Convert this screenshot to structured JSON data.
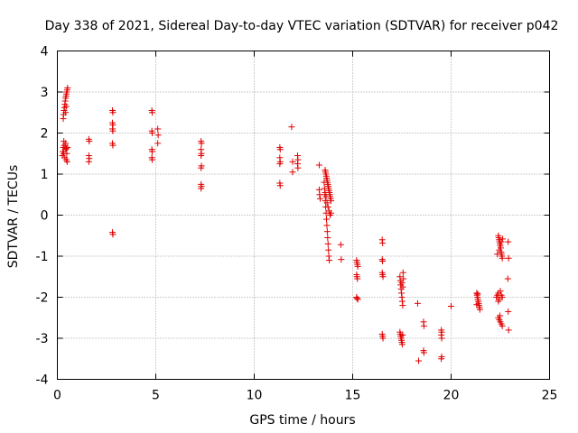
{
  "chart_data": {
    "type": "scatter",
    "title": "Day 338 of 2021, Sidereal Day-to-day VTEC variation (SDTVAR) for receiver p042",
    "xlabel": "GPS time / hours",
    "ylabel": "SDTVAR / TECUs",
    "xlim": [
      0,
      25
    ],
    "ylim": [
      -4,
      4
    ],
    "xticks": [
      "0",
      "5",
      "10",
      "15",
      "20",
      "25"
    ],
    "yticks": [
      "-4",
      "-3",
      "-2",
      "-1",
      "0",
      "1",
      "2",
      "3",
      "4"
    ],
    "grid": true,
    "marker": "+",
    "color": "#e00000",
    "series": [
      {
        "name": "p042",
        "points": [
          [
            0.3,
            2.35
          ],
          [
            0.32,
            2.45
          ],
          [
            0.34,
            2.55
          ],
          [
            0.36,
            2.62
          ],
          [
            0.38,
            2.7
          ],
          [
            0.4,
            2.78
          ],
          [
            0.42,
            2.85
          ],
          [
            0.44,
            2.9
          ],
          [
            0.46,
            2.95
          ],
          [
            0.48,
            3.0
          ],
          [
            0.5,
            3.05
          ],
          [
            0.52,
            3.1
          ],
          [
            0.42,
            2.5
          ],
          [
            0.45,
            2.65
          ],
          [
            0.25,
            1.45
          ],
          [
            0.28,
            1.55
          ],
          [
            0.3,
            1.65
          ],
          [
            0.32,
            1.5
          ],
          [
            0.35,
            1.7
          ],
          [
            0.38,
            1.4
          ],
          [
            0.4,
            1.6
          ],
          [
            0.42,
            1.75
          ],
          [
            0.45,
            1.35
          ],
          [
            0.48,
            1.5
          ],
          [
            0.5,
            1.3
          ],
          [
            0.52,
            1.65
          ],
          [
            0.33,
            1.8
          ],
          [
            0.46,
            1.62
          ],
          [
            1.6,
            1.85
          ],
          [
            1.62,
            1.8
          ],
          [
            1.6,
            1.45
          ],
          [
            1.62,
            1.38
          ],
          [
            1.6,
            1.3
          ],
          [
            2.8,
            2.55
          ],
          [
            2.82,
            2.5
          ],
          [
            2.8,
            2.25
          ],
          [
            2.82,
            2.2
          ],
          [
            2.8,
            2.1
          ],
          [
            2.82,
            2.05
          ],
          [
            2.8,
            1.75
          ],
          [
            2.82,
            1.7
          ],
          [
            2.8,
            -0.42
          ],
          [
            2.82,
            -0.47
          ],
          [
            4.8,
            2.55
          ],
          [
            4.82,
            2.5
          ],
          [
            4.8,
            2.05
          ],
          [
            4.82,
            2.0
          ],
          [
            4.8,
            1.6
          ],
          [
            4.82,
            1.55
          ],
          [
            4.8,
            1.4
          ],
          [
            4.82,
            1.35
          ],
          [
            5.1,
            2.1
          ],
          [
            5.12,
            1.95
          ],
          [
            5.1,
            1.75
          ],
          [
            7.3,
            1.8
          ],
          [
            7.32,
            1.75
          ],
          [
            7.3,
            1.6
          ],
          [
            7.32,
            1.5
          ],
          [
            7.3,
            1.45
          ],
          [
            7.32,
            1.2
          ],
          [
            7.3,
            1.15
          ],
          [
            7.3,
            0.75
          ],
          [
            7.32,
            0.7
          ],
          [
            7.3,
            0.65
          ],
          [
            11.3,
            1.65
          ],
          [
            11.32,
            1.6
          ],
          [
            11.3,
            1.4
          ],
          [
            11.32,
            1.3
          ],
          [
            11.3,
            1.25
          ],
          [
            11.3,
            0.78
          ],
          [
            11.32,
            0.72
          ],
          [
            11.9,
            2.15
          ],
          [
            11.95,
            1.3
          ],
          [
            12.2,
            1.45
          ],
          [
            12.22,
            1.35
          ],
          [
            12.2,
            1.25
          ],
          [
            12.22,
            1.15
          ],
          [
            11.95,
            1.05
          ],
          [
            13.3,
            1.22
          ],
          [
            13.3,
            0.62
          ],
          [
            13.32,
            0.5
          ],
          [
            13.35,
            0.4
          ],
          [
            13.6,
            1.1
          ],
          [
            13.62,
            1.05
          ],
          [
            13.64,
            1.0
          ],
          [
            13.66,
            0.95
          ],
          [
            13.68,
            0.9
          ],
          [
            13.7,
            0.85
          ],
          [
            13.72,
            0.8
          ],
          [
            13.74,
            0.75
          ],
          [
            13.76,
            0.7
          ],
          [
            13.78,
            0.65
          ],
          [
            13.8,
            0.6
          ],
          [
            13.82,
            0.55
          ],
          [
            13.84,
            0.5
          ],
          [
            13.86,
            0.45
          ],
          [
            13.88,
            0.4
          ],
          [
            13.9,
            0.35
          ],
          [
            13.55,
            0.8
          ],
          [
            13.57,
            0.65
          ],
          [
            13.59,
            0.5
          ],
          [
            13.61,
            0.35
          ],
          [
            13.63,
            0.2
          ],
          [
            13.65,
            0.05
          ],
          [
            13.67,
            -0.1
          ],
          [
            13.69,
            -0.25
          ],
          [
            13.71,
            -0.4
          ],
          [
            13.73,
            -0.55
          ],
          [
            13.75,
            -0.7
          ],
          [
            13.77,
            -0.85
          ],
          [
            13.79,
            -1.0
          ],
          [
            13.81,
            -1.1
          ],
          [
            13.7,
            0.3
          ],
          [
            13.75,
            0.2
          ],
          [
            13.8,
            0.1
          ],
          [
            13.85,
            0.0
          ],
          [
            13.9,
            0.05
          ],
          [
            13.65,
            0.45
          ],
          [
            13.6,
            0.55
          ],
          [
            14.4,
            -0.72
          ],
          [
            14.42,
            -1.08
          ],
          [
            15.2,
            -1.1
          ],
          [
            15.22,
            -1.15
          ],
          [
            15.24,
            -1.2
          ],
          [
            15.26,
            -1.25
          ],
          [
            15.2,
            -1.45
          ],
          [
            15.22,
            -1.5
          ],
          [
            15.24,
            -1.55
          ],
          [
            15.2,
            -2.0
          ],
          [
            15.22,
            -2.03
          ],
          [
            15.26,
            -2.05
          ],
          [
            16.5,
            -0.6
          ],
          [
            16.52,
            -0.68
          ],
          [
            16.5,
            -1.08
          ],
          [
            16.52,
            -1.12
          ],
          [
            16.5,
            -1.4
          ],
          [
            16.52,
            -1.45
          ],
          [
            16.54,
            -1.5
          ],
          [
            16.5,
            -2.9
          ],
          [
            16.52,
            -2.95
          ],
          [
            16.54,
            -3.0
          ],
          [
            17.4,
            -1.5
          ],
          [
            17.42,
            -1.6
          ],
          [
            17.44,
            -1.7
          ],
          [
            17.46,
            -1.8
          ],
          [
            17.48,
            -1.9
          ],
          [
            17.5,
            -2.0
          ],
          [
            17.52,
            -2.1
          ],
          [
            17.54,
            -2.2
          ],
          [
            17.56,
            -1.4
          ],
          [
            17.58,
            -1.55
          ],
          [
            17.5,
            -1.65
          ],
          [
            17.55,
            -1.75
          ],
          [
            17.4,
            -2.85
          ],
          [
            17.42,
            -2.9
          ],
          [
            17.44,
            -2.95
          ],
          [
            17.46,
            -3.0
          ],
          [
            17.48,
            -3.05
          ],
          [
            17.5,
            -3.1
          ],
          [
            17.52,
            -3.15
          ],
          [
            17.54,
            -2.92
          ],
          [
            18.3,
            -2.15
          ],
          [
            18.35,
            -3.55
          ],
          [
            18.6,
            -2.6
          ],
          [
            18.62,
            -2.7
          ],
          [
            18.6,
            -3.3
          ],
          [
            18.62,
            -3.35
          ],
          [
            19.5,
            -2.8
          ],
          [
            19.52,
            -2.85
          ],
          [
            19.5,
            -2.92
          ],
          [
            19.52,
            -3.0
          ],
          [
            19.5,
            -3.5
          ],
          [
            19.52,
            -3.45
          ],
          [
            20.0,
            -2.22
          ],
          [
            21.3,
            -1.9
          ],
          [
            21.32,
            -1.95
          ],
          [
            21.34,
            -2.0
          ],
          [
            21.36,
            -2.05
          ],
          [
            21.38,
            -2.1
          ],
          [
            21.4,
            -2.15
          ],
          [
            21.42,
            -2.2
          ],
          [
            21.44,
            -2.25
          ],
          [
            21.46,
            -2.3
          ],
          [
            21.3,
            -2.18
          ],
          [
            21.35,
            -1.92
          ],
          [
            22.4,
            -0.5
          ],
          [
            22.42,
            -0.55
          ],
          [
            22.44,
            -0.6
          ],
          [
            22.46,
            -0.65
          ],
          [
            22.48,
            -0.7
          ],
          [
            22.5,
            -0.75
          ],
          [
            22.52,
            -0.8
          ],
          [
            22.54,
            -0.9
          ],
          [
            22.56,
            -0.95
          ],
          [
            22.58,
            -1.0
          ],
          [
            22.6,
            -1.05
          ],
          [
            22.45,
            -0.85
          ],
          [
            22.55,
            -0.65
          ],
          [
            22.62,
            -0.58
          ],
          [
            22.35,
            -0.95
          ],
          [
            22.3,
            -2.0
          ],
          [
            22.35,
            -1.95
          ],
          [
            22.4,
            -1.9
          ],
          [
            22.45,
            -2.05
          ],
          [
            22.5,
            -1.85
          ],
          [
            22.55,
            -1.95
          ],
          [
            22.6,
            -2.0
          ],
          [
            22.4,
            -2.1
          ],
          [
            22.4,
            -2.5
          ],
          [
            22.45,
            -2.55
          ],
          [
            22.5,
            -2.6
          ],
          [
            22.55,
            -2.65
          ],
          [
            22.6,
            -2.7
          ],
          [
            22.48,
            -2.45
          ],
          [
            22.9,
            -0.65
          ],
          [
            22.92,
            -1.05
          ],
          [
            22.88,
            -1.55
          ],
          [
            22.9,
            -2.35
          ],
          [
            22.92,
            -2.8
          ]
        ]
      }
    ]
  }
}
